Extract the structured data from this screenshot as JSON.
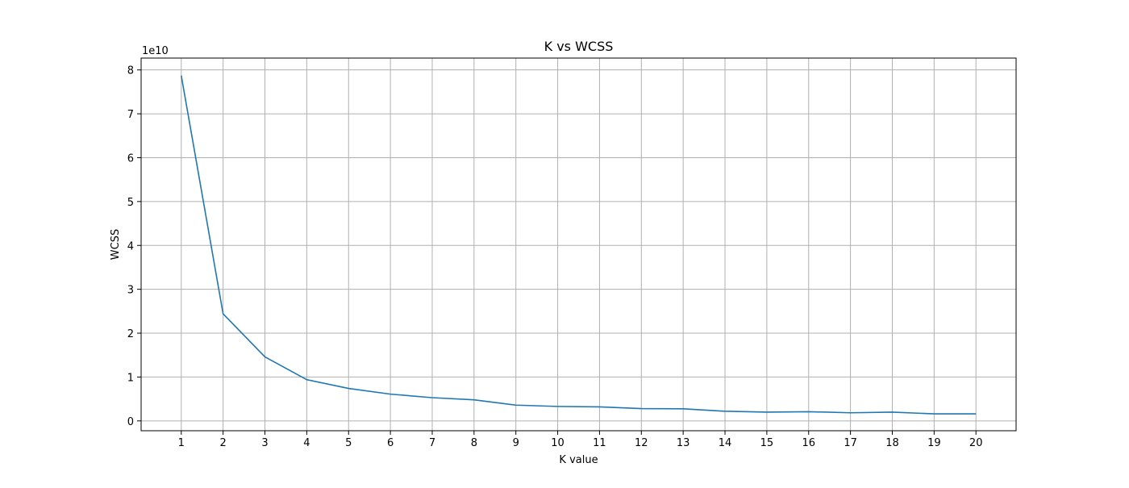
{
  "chart_data": {
    "type": "line",
    "title": "K vs WCSS",
    "xlabel": "K value",
    "ylabel": "WCSS",
    "y_offset_label": "1e10",
    "x": [
      1,
      2,
      3,
      4,
      5,
      6,
      7,
      8,
      9,
      10,
      11,
      12,
      13,
      14,
      15,
      16,
      17,
      18,
      19,
      20
    ],
    "series": [
      {
        "values": [
          78700000000,
          24400000000,
          14600000000,
          9400000000,
          7400000000,
          6100000000,
          5300000000,
          4800000000,
          3600000000,
          3300000000,
          3200000000,
          2800000000,
          2750000000,
          2200000000,
          2000000000,
          2100000000,
          1850000000,
          2000000000,
          1600000000,
          1600000000
        ],
        "color": "#1f77b4"
      }
    ],
    "xlim": [
      0.04,
      20.96
    ],
    "ylim": [
      -2240000000,
      82700000000
    ],
    "xticks": [
      1,
      2,
      3,
      4,
      5,
      6,
      7,
      8,
      9,
      10,
      11,
      12,
      13,
      14,
      15,
      16,
      17,
      18,
      19,
      20
    ],
    "yticks": [
      0,
      1,
      2,
      3,
      4,
      5,
      6,
      7,
      8
    ],
    "grid": true,
    "legend": false
  }
}
